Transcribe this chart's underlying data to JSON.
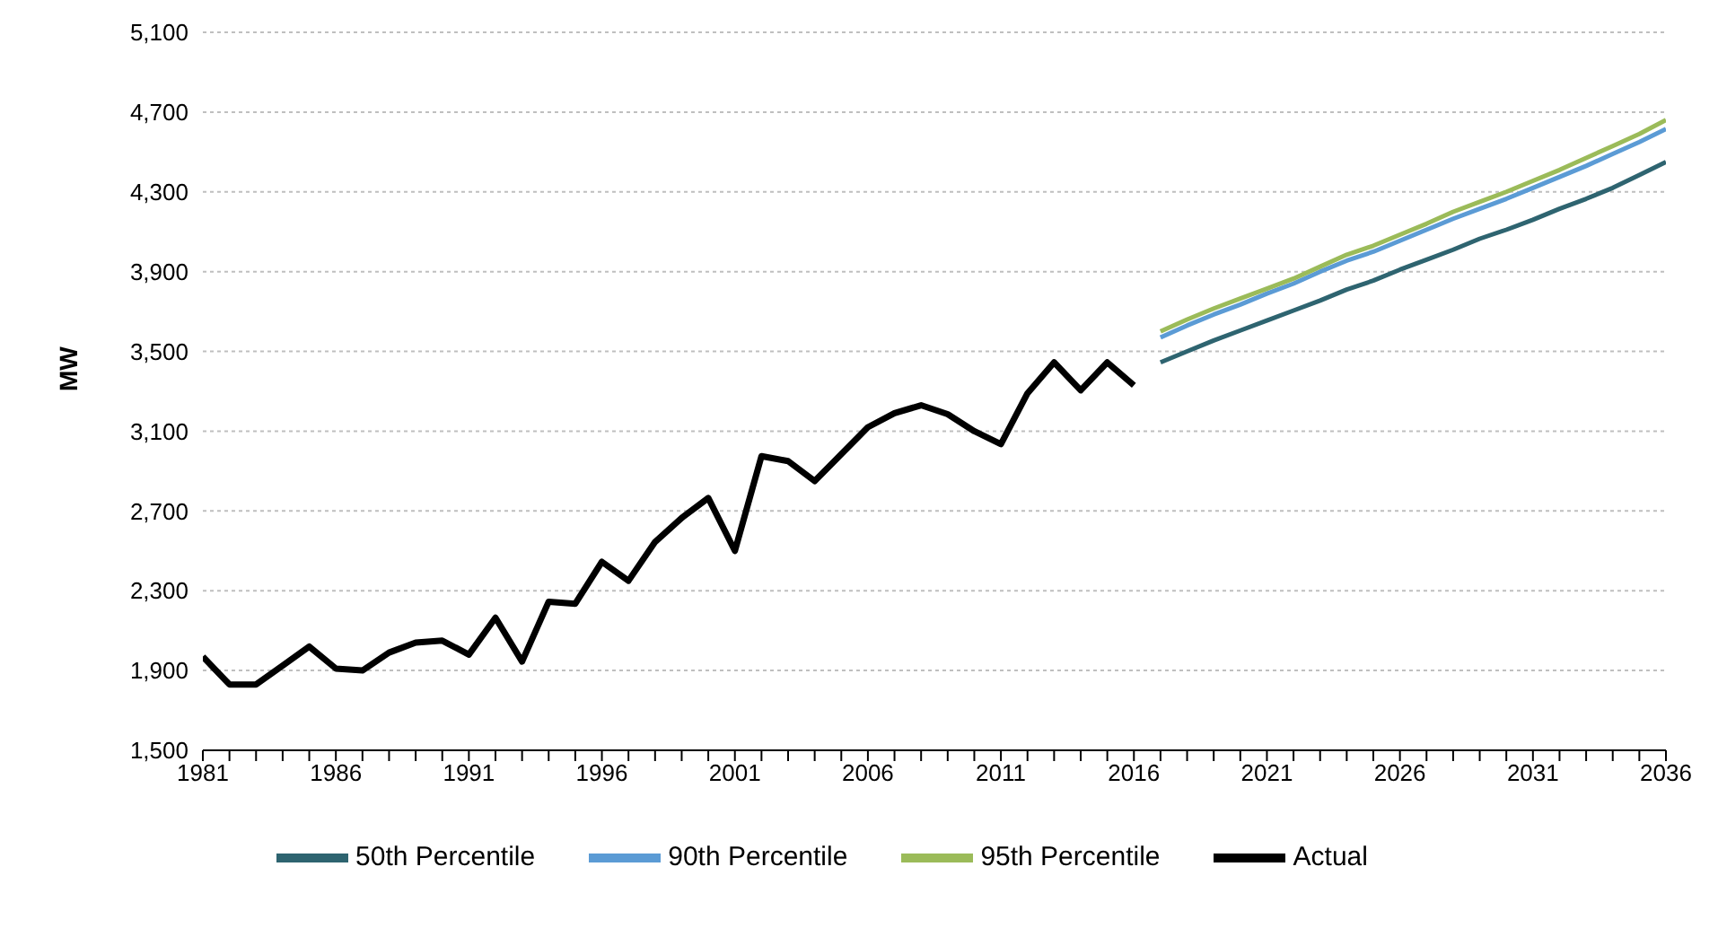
{
  "chart_data": {
    "type": "line",
    "ylabel": "MW",
    "ylim": [
      1500,
      5100
    ],
    "yticks": [
      {
        "value": 1500,
        "label": "1,500"
      },
      {
        "value": 1900,
        "label": "1,900"
      },
      {
        "value": 2300,
        "label": "2,300"
      },
      {
        "value": 2700,
        "label": "2,700"
      },
      {
        "value": 3100,
        "label": "3,100"
      },
      {
        "value": 3500,
        "label": "3,500"
      },
      {
        "value": 3900,
        "label": "3,900"
      },
      {
        "value": 4300,
        "label": "4,300"
      },
      {
        "value": 4700,
        "label": "4,700"
      },
      {
        "value": 5100,
        "label": "5,100"
      }
    ],
    "xlim": [
      1981,
      2036
    ],
    "xticks": [
      1981,
      {
        "value": 1982,
        "label": null
      },
      {
        "value": 1983,
        "label": null
      },
      {
        "value": 1984,
        "label": null
      },
      {
        "value": 1985,
        "label": null
      },
      1986,
      {
        "value": 1987,
        "label": null
      },
      {
        "value": 1988,
        "label": null
      },
      {
        "value": 1989,
        "label": null
      },
      {
        "value": 1990,
        "label": null
      },
      1991,
      {
        "value": 1992,
        "label": null
      },
      {
        "value": 1993,
        "label": null
      },
      {
        "value": 1994,
        "label": null
      },
      {
        "value": 1995,
        "label": null
      },
      1996,
      {
        "value": 1997,
        "label": null
      },
      {
        "value": 1998,
        "label": null
      },
      {
        "value": 1999,
        "label": null
      },
      {
        "value": 2000,
        "label": null
      },
      2001,
      {
        "value": 2002,
        "label": null
      },
      {
        "value": 2003,
        "label": null
      },
      {
        "value": 2004,
        "label": null
      },
      {
        "value": 2005,
        "label": null
      },
      2006,
      {
        "value": 2007,
        "label": null
      },
      {
        "value": 2008,
        "label": null
      },
      {
        "value": 2009,
        "label": null
      },
      {
        "value": 2010,
        "label": null
      },
      2011,
      {
        "value": 2012,
        "label": null
      },
      {
        "value": 2013,
        "label": null
      },
      {
        "value": 2014,
        "label": null
      },
      {
        "value": 2015,
        "label": null
      },
      2016,
      {
        "value": 2017,
        "label": null
      },
      {
        "value": 2018,
        "label": null
      },
      {
        "value": 2019,
        "label": null
      },
      {
        "value": 2020,
        "label": null
      },
      2021,
      {
        "value": 2022,
        "label": null
      },
      {
        "value": 2023,
        "label": null
      },
      {
        "value": 2024,
        "label": null
      },
      {
        "value": 2025,
        "label": null
      },
      2026,
      {
        "value": 2027,
        "label": null
      },
      {
        "value": 2028,
        "label": null
      },
      {
        "value": 2029,
        "label": null
      },
      {
        "value": 2030,
        "label": null
      },
      2031,
      {
        "value": 2032,
        "label": null
      },
      {
        "value": 2033,
        "label": null
      },
      {
        "value": 2034,
        "label": null
      },
      {
        "value": 2035,
        "label": null
      },
      2036
    ],
    "grid": "y",
    "legend": "bottom",
    "marker": "none",
    "line_style": "solid",
    "series": [
      {
        "name": "Actual",
        "color": "#000000",
        "x": [
          1981,
          1982,
          1983,
          1984,
          1985,
          1986,
          1987,
          1988,
          1989,
          1990,
          1991,
          1992,
          1993,
          1994,
          1995,
          1996,
          1997,
          1998,
          1999,
          2000,
          2001,
          2002,
          2003,
          2004,
          2005,
          2006,
          2007,
          2008,
          2009,
          2010,
          2011,
          2012,
          2013,
          2014,
          2015,
          2016
        ],
        "values": [
          1970,
          1830,
          1830,
          1925,
          2020,
          1910,
          1900,
          1990,
          2040,
          2050,
          1980,
          2165,
          1945,
          2245,
          2235,
          2445,
          2350,
          2545,
          2665,
          2765,
          2500,
          2975,
          2950,
          2850,
          2985,
          3120,
          3190,
          3230,
          3185,
          3100,
          3035,
          3290,
          3445,
          3305,
          3445,
          3330
        ]
      },
      {
        "name": "50th Percentile",
        "color": "#2e6470",
        "x": [
          2017,
          2018,
          2019,
          2020,
          2021,
          2022,
          2023,
          2024,
          2025,
          2026,
          2027,
          2028,
          2029,
          2030,
          2031,
          2032,
          2033,
          2034,
          2035,
          2036
        ],
        "values": [
          3445,
          3500,
          3555,
          3605,
          3655,
          3705,
          3755,
          3810,
          3855,
          3910,
          3960,
          4010,
          4065,
          4110,
          4160,
          4215,
          4265,
          4320,
          4385,
          4450
        ]
      },
      {
        "name": "90th Percentile",
        "color": "#5b9bd5",
        "x": [
          2017,
          2018,
          2019,
          2020,
          2021,
          2022,
          2023,
          2024,
          2025,
          2026,
          2027,
          2028,
          2029,
          2030,
          2031,
          2032,
          2033,
          2034,
          2035,
          2036
        ],
        "values": [
          3570,
          3630,
          3685,
          3735,
          3790,
          3840,
          3900,
          3955,
          4000,
          4055,
          4110,
          4165,
          4215,
          4265,
          4320,
          4375,
          4430,
          4490,
          4550,
          4615
        ]
      },
      {
        "name": "95th Percentile",
        "color": "#9bbb59",
        "x": [
          2017,
          2018,
          2019,
          2020,
          2021,
          2022,
          2023,
          2024,
          2025,
          2026,
          2027,
          2028,
          2029,
          2030,
          2031,
          2032,
          2033,
          2034,
          2035,
          2036
        ],
        "values": [
          3600,
          3660,
          3715,
          3765,
          3815,
          3865,
          3925,
          3985,
          4030,
          4085,
          4140,
          4200,
          4250,
          4300,
          4355,
          4410,
          4470,
          4530,
          4590,
          4660
        ]
      }
    ]
  }
}
